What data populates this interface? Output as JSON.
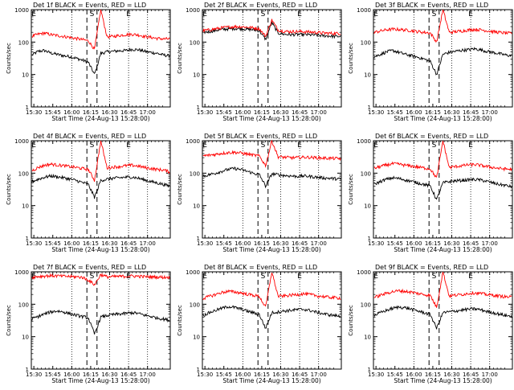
{
  "common": {
    "xlabel": "Start Time (24-Aug-13 15:28:00)",
    "ylabel": "Counts/sec",
    "x_tick_labels": [
      "15:30",
      "15:45",
      "16:00",
      "16:15",
      "16:30",
      "16:45",
      "17:00"
    ],
    "y_tick_labels": [
      "1",
      "10",
      "100",
      "1000"
    ],
    "markers": {
      "E_left": "E",
      "S": "S",
      "E_right": "E"
    },
    "colors": {
      "events": "#000000",
      "lld": "#ff0000"
    }
  },
  "chart_data": [
    {
      "type": "line",
      "title": "Det 1f BLACK = Events, RED = LLD",
      "yscale": "log",
      "ylim": [
        1,
        1000
      ],
      "series": [
        {
          "name": "Events",
          "color": "#000000",
          "values": [
            40,
            52,
            55,
            46,
            42,
            38,
            36,
            32,
            28,
            24,
            10,
            45,
            50,
            52,
            54,
            55,
            60,
            58,
            52,
            48,
            45,
            40,
            38
          ]
        },
        {
          "name": "LLD",
          "color": "#ff0000",
          "values": [
            150,
            175,
            190,
            170,
            160,
            150,
            140,
            130,
            120,
            110,
            60,
            1000,
            145,
            150,
            160,
            170,
            175,
            165,
            150,
            140,
            130,
            125,
            125
          ]
        }
      ]
    },
    {
      "type": "line",
      "title": "Det 2f BLACK = Events, RED = LLD",
      "yscale": "log",
      "ylim": [
        1,
        1000
      ],
      "series": [
        {
          "name": "Events",
          "color": "#000000",
          "values": [
            200,
            210,
            230,
            245,
            255,
            262,
            260,
            250,
            240,
            225,
            120,
            400,
            190,
            175,
            170,
            172,
            170,
            168,
            165,
            158,
            155,
            150,
            150
          ]
        },
        {
          "name": "LLD",
          "color": "#ff0000",
          "values": [
            225,
            238,
            255,
            275,
            290,
            300,
            300,
            290,
            275,
            260,
            150,
            480,
            235,
            215,
            210,
            212,
            210,
            205,
            200,
            192,
            188,
            185,
            185
          ]
        }
      ]
    },
    {
      "type": "line",
      "title": "Det 3f BLACK = Events, RED = LLD",
      "yscale": "log",
      "ylim": [
        1,
        1000
      ],
      "series": [
        {
          "name": "Events",
          "color": "#000000",
          "values": [
            35,
            42,
            50,
            55,
            48,
            42,
            38,
            34,
            30,
            25,
            10,
            42,
            48,
            52,
            56,
            58,
            62,
            58,
            52,
            48,
            44,
            40,
            38
          ]
        },
        {
          "name": "LLD",
          "color": "#ff0000",
          "values": [
            200,
            220,
            240,
            250,
            245,
            235,
            225,
            210,
            200,
            190,
            100,
            1000,
            200,
            210,
            220,
            235,
            245,
            240,
            225,
            210,
            200,
            190,
            185
          ]
        }
      ]
    },
    {
      "type": "line",
      "title": "Det 4f BLACK = Events, RED = LLD",
      "yscale": "log",
      "ylim": [
        1,
        1000
      ],
      "series": [
        {
          "name": "Events",
          "color": "#000000",
          "values": [
            55,
            65,
            75,
            82,
            78,
            72,
            66,
            60,
            52,
            45,
            18,
            60,
            65,
            70,
            72,
            75,
            76,
            70,
            62,
            55,
            50,
            45,
            40
          ]
        },
        {
          "name": "LLD",
          "color": "#ff0000",
          "values": [
            120,
            150,
            175,
            190,
            180,
            170,
            160,
            150,
            140,
            130,
            60,
            1000,
            145,
            155,
            160,
            170,
            175,
            165,
            150,
            140,
            130,
            125,
            110
          ]
        }
      ]
    },
    {
      "type": "line",
      "title": "Det 5f BLACK = Events, RED = LLD",
      "yscale": "log",
      "ylim": [
        1,
        1000
      ],
      "series": [
        {
          "name": "Events",
          "color": "#000000",
          "values": [
            80,
            90,
            100,
            115,
            130,
            140,
            130,
            115,
            100,
            90,
            40,
            95,
            90,
            85,
            82,
            80,
            82,
            80,
            76,
            72,
            70,
            68,
            65
          ]
        },
        {
          "name": "LLD",
          "color": "#ff0000",
          "values": [
            340,
            360,
            380,
            410,
            430,
            440,
            420,
            390,
            360,
            340,
            170,
            1000,
            320,
            310,
            300,
            300,
            310,
            310,
            300,
            295,
            290,
            285,
            280
          ]
        }
      ]
    },
    {
      "type": "line",
      "title": "Det 6f BLACK = Events, RED = LLD",
      "yscale": "log",
      "ylim": [
        1,
        1000
      ],
      "series": [
        {
          "name": "Events",
          "color": "#000000",
          "values": [
            45,
            55,
            65,
            72,
            68,
            62,
            56,
            50,
            45,
            40,
            15,
            50,
            55,
            58,
            60,
            62,
            64,
            62,
            56,
            50,
            45,
            42,
            38
          ]
        },
        {
          "name": "LLD",
          "color": "#ff0000",
          "values": [
            140,
            160,
            180,
            195,
            190,
            175,
            165,
            155,
            145,
            135,
            70,
            1000,
            150,
            160,
            170,
            180,
            185,
            175,
            160,
            150,
            140,
            135,
            130
          ]
        }
      ]
    },
    {
      "type": "line",
      "title": "Det 7f BLACK = Events, RED = LLD",
      "yscale": "log",
      "ylim": [
        1,
        1000
      ],
      "series": [
        {
          "name": "Events",
          "color": "#000000",
          "values": [
            35,
            42,
            50,
            58,
            62,
            58,
            52,
            46,
            42,
            38,
            12,
            40,
            45,
            48,
            50,
            52,
            55,
            52,
            46,
            42,
            38,
            35,
            32
          ]
        },
        {
          "name": "LLD",
          "color": "#ff0000",
          "values": [
            680,
            720,
            740,
            760,
            750,
            730,
            720,
            700,
            680,
            560,
            400,
            820,
            700,
            710,
            720,
            730,
            740,
            730,
            710,
            700,
            690,
            680,
            680
          ]
        }
      ]
    },
    {
      "type": "line",
      "title": "Det 8f BLACK = Events, RED = LLD",
      "yscale": "log",
      "ylim": [
        1,
        1000
      ],
      "series": [
        {
          "name": "Events",
          "color": "#000000",
          "values": [
            45,
            55,
            65,
            75,
            85,
            80,
            72,
            62,
            55,
            48,
            18,
            55,
            58,
            62,
            65,
            68,
            70,
            65,
            58,
            52,
            48,
            45,
            42
          ]
        },
        {
          "name": "LLD",
          "color": "#ff0000",
          "values": [
            150,
            175,
            200,
            230,
            250,
            240,
            225,
            205,
            190,
            175,
            80,
            1000,
            175,
            180,
            190,
            200,
            210,
            200,
            185,
            175,
            165,
            160,
            155
          ]
        }
      ]
    },
    {
      "type": "line",
      "title": "Det 9f BLACK = Events, RED = LLD",
      "yscale": "log",
      "ylim": [
        1,
        1000
      ],
      "series": [
        {
          "name": "Events",
          "color": "#000000",
          "values": [
            45,
            55,
            65,
            75,
            82,
            78,
            70,
            62,
            55,
            48,
            18,
            55,
            58,
            62,
            66,
            70,
            72,
            68,
            60,
            55,
            50,
            45,
            42
          ]
        },
        {
          "name": "LLD",
          "color": "#ff0000",
          "values": [
            160,
            190,
            220,
            245,
            260,
            250,
            235,
            215,
            200,
            185,
            80,
            1000,
            180,
            190,
            200,
            215,
            225,
            215,
            200,
            190,
            180,
            170,
            165
          ]
        }
      ]
    }
  ]
}
